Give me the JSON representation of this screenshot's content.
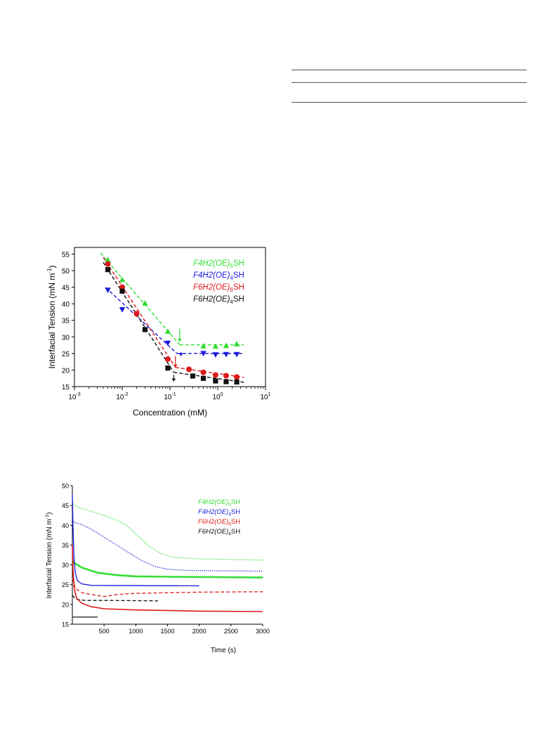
{
  "chart_data": [
    {
      "type": "scatter",
      "xlabel": "Concentration (mM)",
      "ylabel": "Interfacial Tension (mN m",
      "ylabel_sup": "-1",
      "ylabel_close": ")",
      "xscale": "log",
      "xlim": [
        0.001,
        10
      ],
      "ylim": [
        15,
        57
      ],
      "xticks": [
        0.001,
        0.01,
        0.1,
        1,
        10
      ],
      "xtick_labels": [
        [
          "10",
          "-3"
        ],
        [
          "10",
          "-2"
        ],
        [
          "10",
          "-1"
        ],
        [
          "10",
          "0"
        ],
        [
          "10",
          "1"
        ]
      ],
      "yticks": [
        15,
        20,
        25,
        30,
        35,
        40,
        45,
        50,
        55
      ],
      "legend_position": "top-right",
      "series": [
        {
          "prefix": "F4H2(OE)",
          "sub": "6",
          "suffix": "SH",
          "color": "#33dd33",
          "marker": "triangle-up",
          "points": [
            [
              0.005,
              53.2
            ],
            [
              0.01,
              47.2
            ],
            [
              0.03,
              40.1
            ],
            [
              0.09,
              31.6
            ],
            [
              0.5,
              27.2
            ],
            [
              0.9,
              27.1
            ],
            [
              1.5,
              27.3
            ],
            [
              2.5,
              27.8
            ]
          ],
          "fit": [
            [
              [
                0.0035,
                55.3
              ],
              [
                0.16,
                27.6
              ]
            ],
            [
              [
                0.16,
                27.6
              ],
              [
                3.5,
                27.6
              ]
            ]
          ],
          "arrow": [
            0.16,
            32.5,
            28.6
          ]
        },
        {
          "prefix": "F4H2(OE)",
          "sub": "4",
          "suffix": "SH",
          "color": "#1a1adc",
          "marker": "triangle-down",
          "points": [
            [
              0.005,
              44.2
            ],
            [
              0.01,
              38.3
            ],
            [
              0.09,
              28.2
            ],
            [
              0.5,
              25.1
            ],
            [
              0.9,
              24.7
            ],
            [
              1.5,
              24.8
            ],
            [
              2.5,
              24.8
            ]
          ],
          "fit": [
            [
              [
                0.0045,
                44.9
              ],
              [
                0.14,
                25.0
              ]
            ],
            [
              [
                0.14,
                25.0
              ],
              [
                3.5,
                25.0
              ]
            ]
          ],
          "arrow": [
            0.17,
            25.4,
            24.2
          ]
        },
        {
          "prefix": "F6H2(OE)",
          "sub": "6",
          "suffix": "SH",
          "color": "#dd1a1a",
          "marker": "circle",
          "points": [
            [
              0.005,
              52.0
            ],
            [
              0.01,
              45.0
            ],
            [
              0.02,
              37.0
            ],
            [
              0.09,
              23.3
            ],
            [
              0.25,
              20.2
            ],
            [
              0.5,
              19.3
            ],
            [
              0.9,
              18.5
            ],
            [
              1.5,
              18.3
            ],
            [
              2.5,
              17.9
            ]
          ],
          "fit": [
            [
              [
                0.004,
                54.0
              ],
              [
                0.13,
                20.8
              ]
            ],
            [
              [
                0.13,
                20.8
              ],
              [
                3.5,
                17.8
              ]
            ]
          ],
          "arrow": [
            0.13,
            24.2,
            20.8
          ]
        },
        {
          "prefix": "F6H2(OE)",
          "sub": "4",
          "suffix": "SH",
          "color": "#111111",
          "marker": "square",
          "points": [
            [
              0.005,
              50.3
            ],
            [
              0.01,
              43.8
            ],
            [
              0.03,
              32.2
            ],
            [
              0.09,
              20.6
            ],
            [
              0.3,
              18.2
            ],
            [
              0.5,
              17.5
            ],
            [
              0.9,
              16.7
            ],
            [
              1.5,
              16.5
            ],
            [
              2.5,
              16.4
            ]
          ],
          "fit": [
            [
              [
                0.004,
                52.5
              ],
              [
                0.12,
                19.3
              ]
            ],
            [
              [
                0.12,
                19.3
              ],
              [
                3.5,
                16.3
              ]
            ]
          ],
          "arrow": [
            0.12,
            18.5,
            16.6
          ]
        }
      ]
    },
    {
      "type": "line",
      "xlabel": "Time (s)",
      "ylabel": "Interfacial Tension (mN m",
      "ylabel_sup": "-1",
      "ylabel_close": ")",
      "xlim": [
        0,
        3000
      ],
      "ylim": [
        15,
        50
      ],
      "xticks": [
        500,
        1000,
        1500,
        2000,
        2500,
        3000
      ],
      "yticks": [
        15,
        20,
        25,
        30,
        35,
        40,
        45,
        50
      ],
      "legend_position": "top-right",
      "legend": [
        {
          "prefix": "F4H2(OE)",
          "sub": "6",
          "suffix": "SH",
          "color": "#33dd33"
        },
        {
          "prefix": "F4H2(OE)",
          "sub": "4",
          "suffix": "SH",
          "color": "#1a1adc"
        },
        {
          "prefix": "F6H2(OE)",
          "sub": "6",
          "suffix": "SH",
          "color": "#dd1a1a"
        },
        {
          "prefix": "F6H2(OE)",
          "sub": "4",
          "suffix": "SH",
          "color": "#111111"
        }
      ],
      "series": [
        {
          "color": "#33dd33",
          "style": "dotted",
          "width": 1.3,
          "points": [
            [
              0,
              46.5
            ],
            [
              20,
              45.2
            ],
            [
              100,
              44.5
            ],
            [
              300,
              43.5
            ],
            [
              500,
              42.5
            ],
            [
              700,
              41.3
            ],
            [
              850,
              40.0
            ],
            [
              1000,
              37.8
            ],
            [
              1200,
              34.8
            ],
            [
              1400,
              32.8
            ],
            [
              1600,
              31.9
            ],
            [
              2000,
              31.5
            ],
            [
              3000,
              31.2
            ]
          ]
        },
        {
          "color": "#1a1adc",
          "style": "dotted",
          "width": 1.3,
          "points": [
            [
              0,
              41.5
            ],
            [
              20,
              40.8
            ],
            [
              150,
              40.2
            ],
            [
              300,
              39.0
            ],
            [
              500,
              37.0
            ],
            [
              700,
              35.0
            ],
            [
              900,
              33.0
            ],
            [
              1100,
              31.0
            ],
            [
              1300,
              29.6
            ],
            [
              1500,
              28.9
            ],
            [
              1800,
              28.6
            ],
            [
              3000,
              28.4
            ]
          ]
        },
        {
          "color": "#33dd33",
          "style": "solid",
          "width": 2.6,
          "points": [
            [
              0,
              31.2
            ],
            [
              30,
              30.5
            ],
            [
              150,
              29.3
            ],
            [
              400,
              28.0
            ],
            [
              700,
              27.4
            ],
            [
              1000,
              27.1
            ],
            [
              1500,
              27.0
            ],
            [
              3000,
              26.8
            ]
          ]
        },
        {
          "color": "#1a1adc",
          "style": "solid",
          "width": 1.3,
          "points": [
            [
              0,
              48.0
            ],
            [
              10,
              40.0
            ],
            [
              25,
              32.0
            ],
            [
              45,
              28.0
            ],
            [
              80,
              26.0
            ],
            [
              150,
              25.2
            ],
            [
              300,
              24.8
            ],
            [
              2000,
              24.7
            ]
          ]
        },
        {
          "color": "#dd1a1a",
          "style": "dashed",
          "width": 1.3,
          "points": [
            [
              0,
              26.5
            ],
            [
              50,
              24.0
            ],
            [
              150,
              23.0
            ],
            [
              300,
              22.5
            ],
            [
              500,
              22.0
            ],
            [
              700,
              22.5
            ],
            [
              1000,
              22.8
            ],
            [
              2000,
              23.1
            ],
            [
              3000,
              23.2
            ]
          ]
        },
        {
          "color": "#111111",
          "style": "dashed",
          "width": 1.3,
          "points": [
            [
              0,
              22.3
            ],
            [
              60,
              21.3
            ],
            [
              200,
              21.0
            ],
            [
              600,
              21.0
            ],
            [
              1350,
              20.9
            ]
          ]
        },
        {
          "color": "#dd1a1a",
          "style": "solid",
          "width": 1.6,
          "points": [
            [
              0,
              35.0
            ],
            [
              12,
              28.0
            ],
            [
              30,
              24.0
            ],
            [
              70,
              21.5
            ],
            [
              150,
              20.3
            ],
            [
              300,
              19.4
            ],
            [
              500,
              18.9
            ],
            [
              1000,
              18.6
            ],
            [
              2000,
              18.3
            ],
            [
              3000,
              18.2
            ]
          ]
        },
        {
          "color": "#111111",
          "style": "solid",
          "width": 1.3,
          "points": [
            [
              0,
              16.8
            ],
            [
              400,
              16.8
            ]
          ]
        }
      ]
    }
  ]
}
